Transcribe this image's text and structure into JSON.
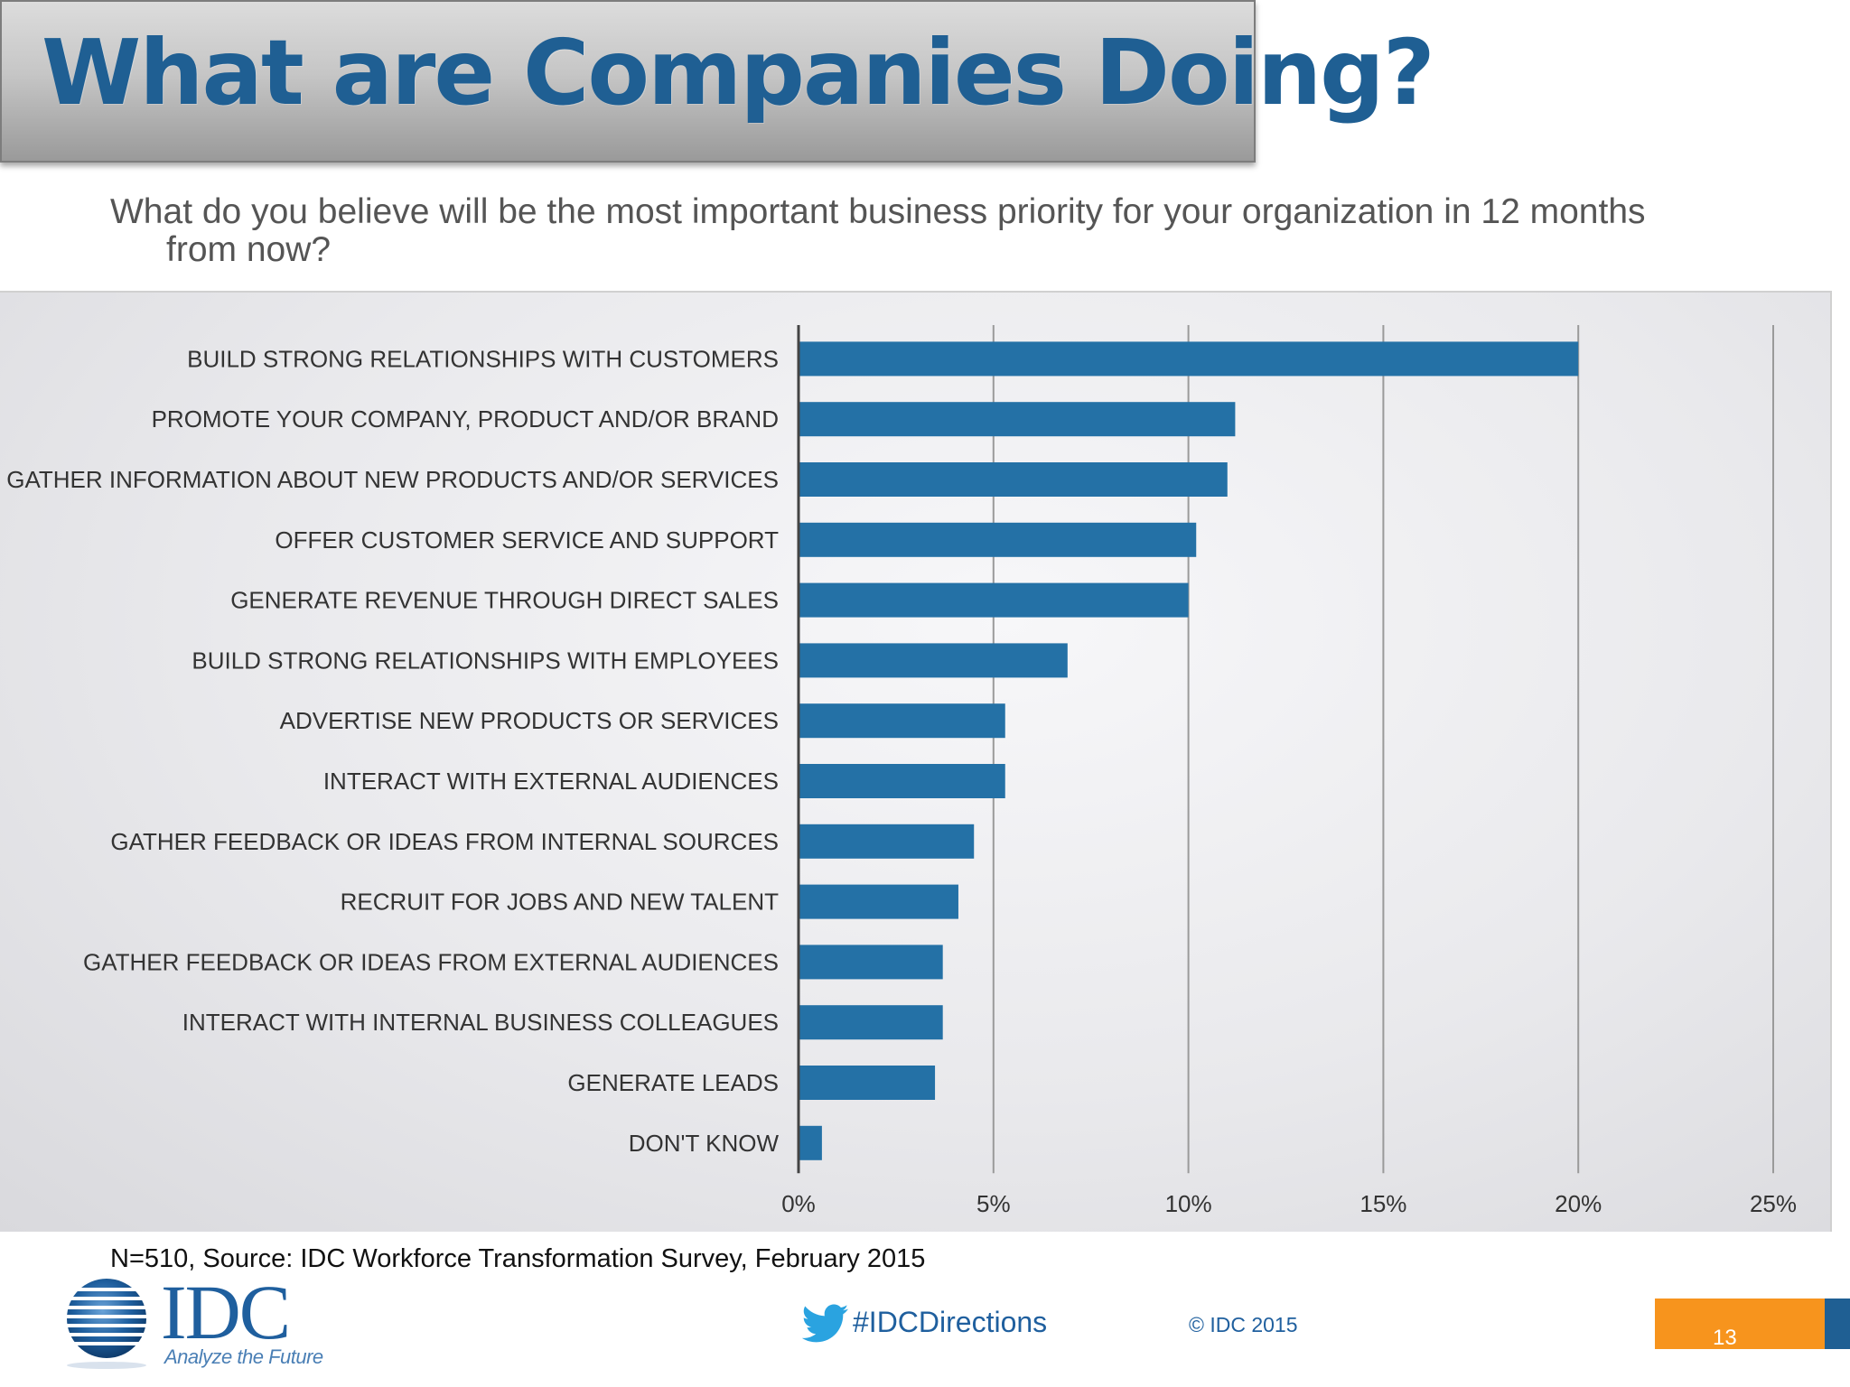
{
  "header": {
    "title": "What are Companies Doing?"
  },
  "question": {
    "line1": "What do you believe will be the most important business priority for your organization in 12 months",
    "line2": "from now?"
  },
  "chart_data": {
    "type": "bar",
    "orientation": "horizontal",
    "categories": [
      "BUILD STRONG RELATIONSHIPS WITH CUSTOMERS",
      "PROMOTE YOUR COMPANY, PRODUCT AND/OR BRAND",
      "GATHER INFORMATION ABOUT NEW PRODUCTS AND/OR SERVICES",
      "OFFER CUSTOMER SERVICE AND SUPPORT",
      "GENERATE REVENUE THROUGH DIRECT SALES",
      "BUILD STRONG RELATIONSHIPS WITH EMPLOYEES",
      "ADVERTISE NEW PRODUCTS OR SERVICES",
      "INTERACT WITH EXTERNAL AUDIENCES",
      "GATHER FEEDBACK OR IDEAS FROM INTERNAL SOURCES",
      "RECRUIT FOR JOBS AND NEW TALENT",
      "GATHER FEEDBACK OR IDEAS FROM EXTERNAL AUDIENCES",
      "INTERACT WITH INTERNAL BUSINESS COLLEAGUES",
      "GENERATE LEADS",
      "DON'T KNOW"
    ],
    "values": [
      20,
      11.2,
      11,
      10.2,
      10,
      6.9,
      5.3,
      5.3,
      4.5,
      4.1,
      3.7,
      3.7,
      3.5,
      0.6
    ],
    "xlim": [
      0,
      25
    ],
    "ticks": [
      {
        "value": 0,
        "label": "0%"
      },
      {
        "value": 5,
        "label": "5%"
      },
      {
        "value": 10,
        "label": "10%"
      },
      {
        "value": 15,
        "label": "15%"
      },
      {
        "value": 20,
        "label": "20%"
      },
      {
        "value": 25,
        "label": "25%"
      }
    ],
    "grid": true,
    "bar_color": "#2471a6",
    "grid_color": "#9a9a9a",
    "axis_color": "#444444"
  },
  "footer": {
    "source": "N=510, Source: IDC Workforce Transformation Survey, February 2015",
    "logo_text": "IDC",
    "logo_tagline": "Analyze the Future",
    "hashtag": "#IDCDirections",
    "copyright": "© IDC 2015",
    "page_number": "13",
    "accent_orange": "#f7941d",
    "brand_blue": "#1f5f9e"
  }
}
